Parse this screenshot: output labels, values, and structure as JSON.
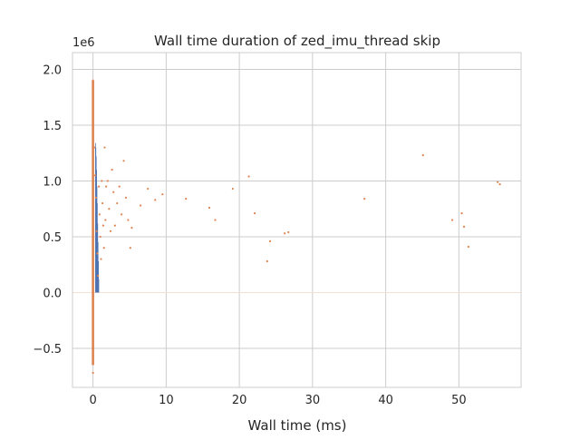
{
  "chart_data": {
    "type": "scatter",
    "title": "Wall time duration of zed_imu_thread skip",
    "xlabel": "Wall time (ms)",
    "ylabel": "",
    "y_offset_label": "1e6",
    "xlim": [
      -2.8,
      58.5
    ],
    "ylim": [
      -0.85,
      2.15
    ],
    "x_ticks": [
      0,
      10,
      20,
      30,
      40,
      50
    ],
    "x_tick_labels": [
      "0",
      "10",
      "20",
      "30",
      "40",
      "50"
    ],
    "y_ticks": [
      -0.5,
      0.0,
      0.5,
      1.0,
      1.5,
      2.0
    ],
    "y_tick_labels": [
      "−0.5",
      "0.0",
      "0.5",
      "1.0",
      "1.5",
      "2.0"
    ],
    "grid": true,
    "legend": "none",
    "bars": {
      "color": "#4c72b0",
      "x_range": [
        0.3,
        0.8
      ],
      "values": [
        1.34,
        1.3,
        1.22,
        1.1,
        0.95,
        0.8,
        0.62,
        0.45,
        0.28,
        0.12
      ]
    },
    "points": {
      "color": "#dd8452",
      "values": [
        [
          0.0,
          1.9
        ],
        [
          0.0,
          1.75
        ],
        [
          0.0,
          1.5
        ],
        [
          0.0,
          1.2
        ],
        [
          0.0,
          0.8
        ],
        [
          0.0,
          0.4
        ],
        [
          0.0,
          -0.2
        ],
        [
          0.0,
          -0.5
        ],
        [
          0.0,
          -0.6
        ],
        [
          0.0,
          -0.72
        ],
        [
          0.2,
          1.3
        ],
        [
          0.3,
          1.05
        ],
        [
          0.4,
          0.85
        ],
        [
          0.5,
          0.55
        ],
        [
          0.6,
          0.35
        ],
        [
          0.7,
          0.15
        ],
        [
          0.8,
          0.95
        ],
        [
          0.9,
          0.7
        ],
        [
          1.0,
          0.5
        ],
        [
          1.1,
          0.3
        ],
        [
          1.2,
          1.0
        ],
        [
          1.3,
          0.8
        ],
        [
          1.4,
          0.6
        ],
        [
          1.5,
          0.4
        ],
        [
          1.6,
          1.3
        ],
        [
          1.7,
          0.65
        ],
        [
          1.8,
          0.95
        ],
        [
          2.0,
          1.0
        ],
        [
          2.2,
          0.75
        ],
        [
          2.4,
          0.55
        ],
        [
          2.6,
          1.1
        ],
        [
          2.8,
          0.9
        ],
        [
          3.0,
          0.6
        ],
        [
          3.3,
          0.8
        ],
        [
          3.6,
          0.95
        ],
        [
          3.9,
          0.7
        ],
        [
          4.2,
          1.18
        ],
        [
          4.5,
          0.85
        ],
        [
          4.8,
          0.65
        ],
        [
          5.1,
          0.4
        ],
        [
          5.3,
          0.58
        ],
        [
          6.5,
          0.78
        ],
        [
          7.5,
          0.93
        ],
        [
          8.5,
          0.83
        ],
        [
          9.5,
          0.88
        ],
        [
          12.7,
          0.84
        ],
        [
          15.9,
          0.76
        ],
        [
          16.7,
          0.65
        ],
        [
          19.1,
          0.93
        ],
        [
          21.3,
          1.04
        ],
        [
          22.1,
          0.71
        ],
        [
          23.8,
          0.28
        ],
        [
          24.2,
          0.46
        ],
        [
          26.2,
          0.53
        ],
        [
          26.7,
          0.54
        ],
        [
          37.1,
          0.84
        ],
        [
          45.1,
          1.23
        ],
        [
          49.1,
          0.65
        ],
        [
          50.4,
          0.71
        ],
        [
          50.7,
          0.59
        ],
        [
          51.3,
          0.41
        ],
        [
          55.3,
          0.99
        ],
        [
          55.6,
          0.97
        ]
      ]
    }
  }
}
